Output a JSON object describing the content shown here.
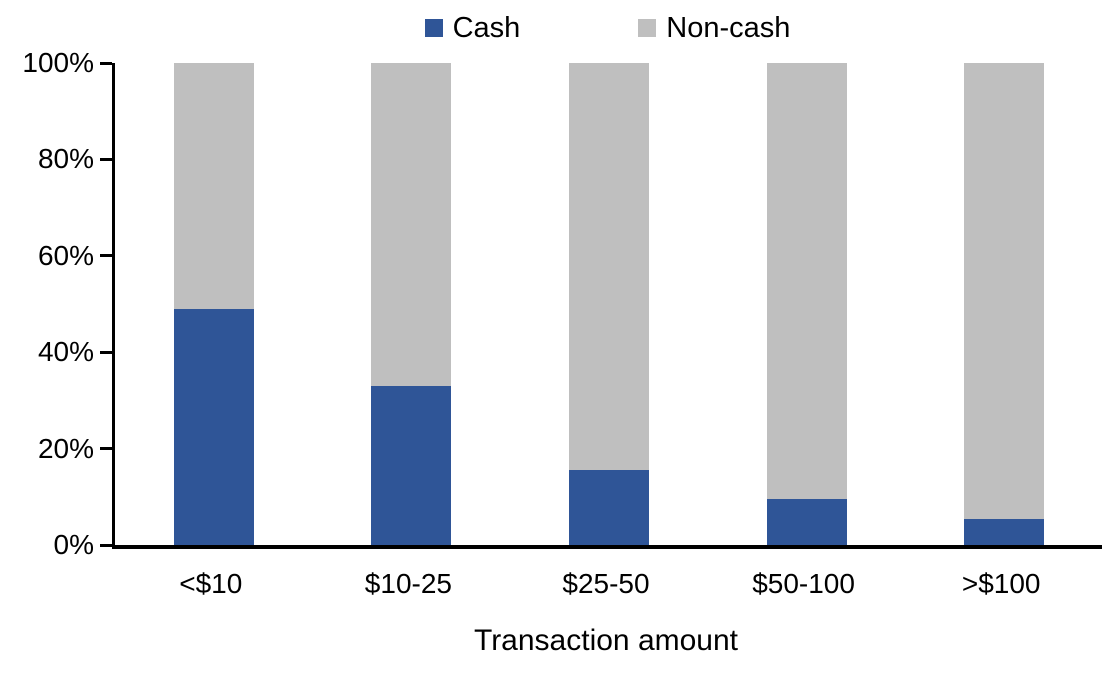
{
  "colors": {
    "cash": "#2F5597",
    "noncash": "#BFBFBF",
    "axis": "#000000",
    "background": "#FFFFFF"
  },
  "legend": {
    "items": [
      {
        "label": "Cash",
        "color_key": "cash"
      },
      {
        "label": "Non-cash",
        "color_key": "noncash"
      }
    ]
  },
  "chart_data": {
    "type": "bar",
    "stacked": true,
    "unit": "%",
    "title": "",
    "xlabel": "Transaction amount",
    "ylabel": "",
    "categories": [
      "<$10",
      "$10-25",
      "$25-50",
      "$50-100",
      ">$100"
    ],
    "series": [
      {
        "name": "Cash",
        "color_key": "cash",
        "values": [
          49,
          33,
          15.5,
          9.5,
          5.5
        ]
      },
      {
        "name": "Non-cash",
        "color_key": "noncash",
        "values": [
          51,
          67,
          84.5,
          90.5,
          94.5
        ]
      }
    ],
    "ylim": [
      0,
      100
    ],
    "yticks": [
      {
        "label": "0%",
        "value": 0
      },
      {
        "label": "20%",
        "value": 20
      },
      {
        "label": "40%",
        "value": 40
      },
      {
        "label": "60%",
        "value": 60
      },
      {
        "label": "80%",
        "value": 80
      },
      {
        "label": "100%",
        "value": 100
      }
    ],
    "grid": false,
    "legend_position": "top-center"
  }
}
